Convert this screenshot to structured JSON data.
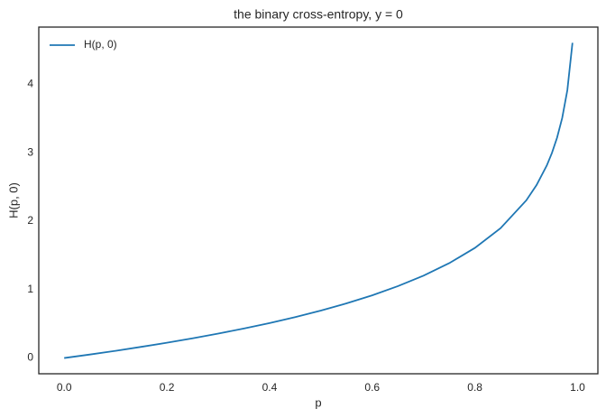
{
  "chart_data": {
    "type": "line",
    "title": "the binary cross-entropy, y = 0",
    "x_label": "p",
    "y_label": "H(p, 0)",
    "x": [
      0,
      0.05,
      0.1,
      0.15,
      0.2,
      0.25,
      0.3,
      0.35,
      0.4,
      0.45,
      0.5,
      0.55,
      0.6,
      0.65,
      0.7,
      0.75,
      0.8,
      0.85,
      0.9,
      0.92,
      0.94,
      0.95,
      0.96,
      0.97,
      0.98,
      0.99
    ],
    "series": [
      {
        "name": "H(p, 0)",
        "color": "#1f77b4",
        "values": [
          0,
          0.051,
          0.105,
          0.163,
          0.223,
          0.288,
          0.357,
          0.431,
          0.511,
          0.598,
          0.693,
          0.799,
          0.916,
          1.05,
          1.204,
          1.386,
          1.609,
          1.897,
          2.303,
          2.526,
          2.813,
          2.996,
          3.219,
          3.507,
          3.912,
          4.605
        ]
      }
    ],
    "xlim": [
      -0.0495,
      1.0395
    ],
    "xticks": [
      {
        "value": 0,
        "label": "0.0"
      },
      0.2,
      0.4,
      0.6,
      0.8,
      {
        "value": 1,
        "label": "1.0"
      }
    ],
    "ylim": [
      -0.23,
      4.835
    ],
    "yticks": [
      0,
      1,
      2,
      3,
      4
    ],
    "grid": false,
    "legend": "upper-left"
  }
}
